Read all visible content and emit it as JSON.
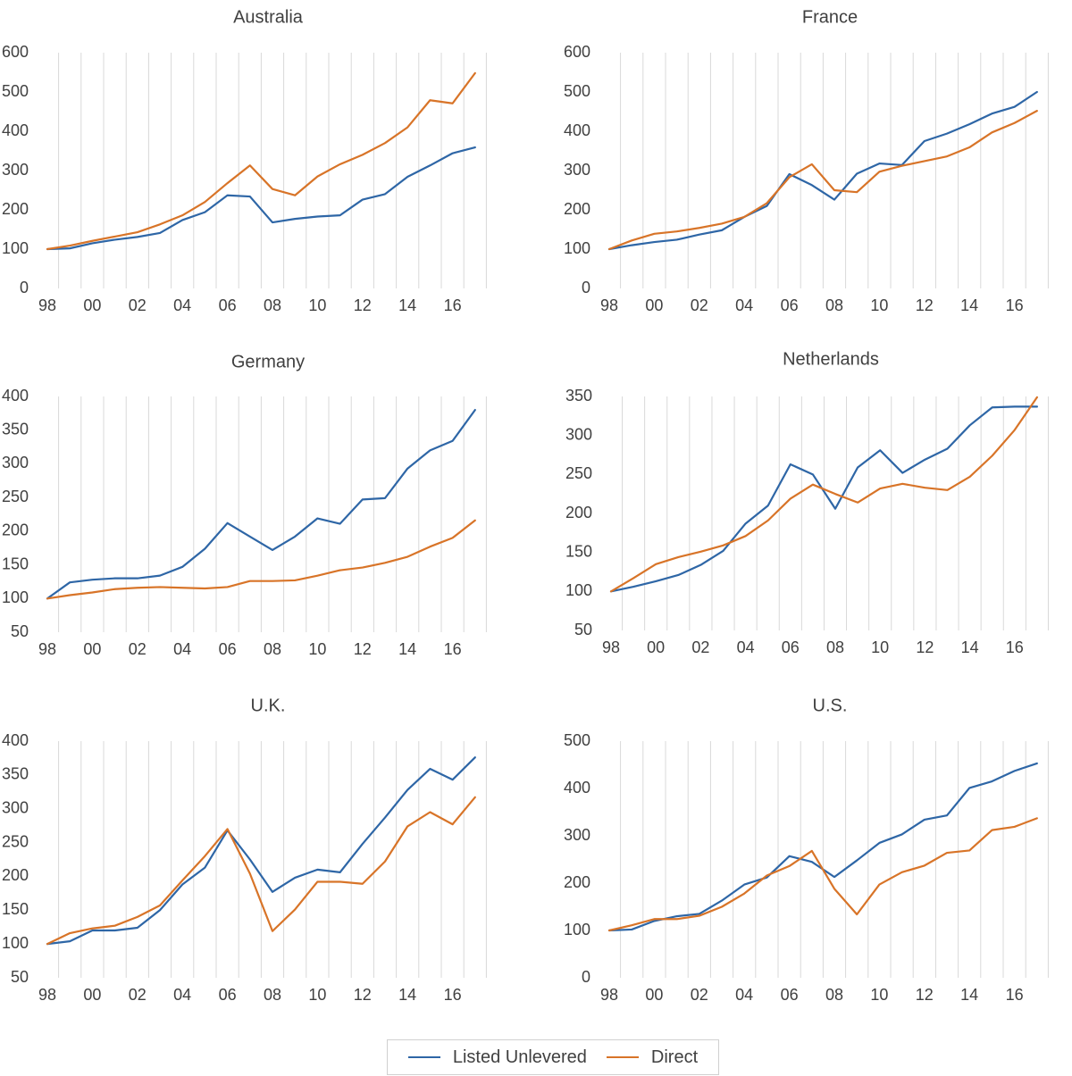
{
  "colors": {
    "listed": "#2e66a6",
    "direct": "#d87428",
    "grid": "#d9d9d9",
    "text": "#404040"
  },
  "legend": {
    "items": [
      {
        "label": "Listed Unlevered",
        "color": "#2e66a6"
      },
      {
        "label": "Direct",
        "color": "#d87428"
      }
    ],
    "placement": "bottom-center"
  },
  "chart_data": [
    {
      "type": "line",
      "title": "Australia",
      "x": [
        1998,
        1999,
        2000,
        2001,
        2002,
        2003,
        2004,
        2005,
        2006,
        2007,
        2008,
        2009,
        2010,
        2011,
        2012,
        2013,
        2014,
        2015,
        2016,
        2017
      ],
      "xticks": [
        1998,
        2000,
        2002,
        2004,
        2006,
        2008,
        2010,
        2012,
        2014,
        2016
      ],
      "xticklabels": [
        "98",
        "00",
        "02",
        "04",
        "06",
        "08",
        "10",
        "12",
        "14",
        "16"
      ],
      "ylim": [
        0,
        600
      ],
      "yticks": [
        0,
        100,
        200,
        300,
        400,
        500,
        600
      ],
      "grid": "vertical",
      "series": [
        {
          "name": "Listed Unlevered",
          "values": [
            100,
            102,
            115,
            124,
            131,
            141,
            174,
            194,
            237,
            234,
            168,
            177,
            183,
            186,
            226,
            240,
            284,
            313,
            344,
            359
          ]
        },
        {
          "name": "Direct",
          "values": [
            100,
            109,
            121,
            132,
            143,
            163,
            186,
            220,
            268,
            313,
            253,
            237,
            285,
            316,
            340,
            370,
            410,
            479,
            471,
            548
          ]
        }
      ]
    },
    {
      "type": "line",
      "title": "France",
      "x": [
        1998,
        1999,
        2000,
        2001,
        2002,
        2003,
        2004,
        2005,
        2006,
        2007,
        2008,
        2009,
        2010,
        2011,
        2012,
        2013,
        2014,
        2015,
        2016,
        2017
      ],
      "xticks": [
        1998,
        2000,
        2002,
        2004,
        2006,
        2008,
        2010,
        2012,
        2014,
        2016
      ],
      "xticklabels": [
        "98",
        "00",
        "02",
        "04",
        "06",
        "08",
        "10",
        "12",
        "14",
        "16"
      ],
      "ylim": [
        0,
        600
      ],
      "yticks": [
        0,
        100,
        200,
        300,
        400,
        500,
        600
      ],
      "grid": "vertical",
      "series": [
        {
          "name": "Listed Unlevered",
          "values": [
            100,
            110,
            118,
            124,
            137,
            148,
            182,
            210,
            291,
            263,
            226,
            292,
            318,
            314,
            375,
            394,
            418,
            445,
            462,
            500
          ]
        },
        {
          "name": "Direct",
          "values": [
            100,
            122,
            139,
            145,
            154,
            165,
            182,
            217,
            283,
            316,
            250,
            245,
            297,
            312,
            324,
            336,
            359,
            397,
            421,
            452
          ]
        }
      ]
    },
    {
      "type": "line",
      "title": "Germany",
      "x": [
        1998,
        1999,
        2000,
        2001,
        2002,
        2003,
        2004,
        2005,
        2006,
        2007,
        2008,
        2009,
        2010,
        2011,
        2012,
        2013,
        2014,
        2015,
        2016,
        2017
      ],
      "xticks": [
        1998,
        2000,
        2002,
        2004,
        2006,
        2008,
        2010,
        2012,
        2014,
        2016
      ],
      "xticklabels": [
        "98",
        "00",
        "02",
        "04",
        "06",
        "08",
        "10",
        "12",
        "14",
        "16"
      ],
      "ylim": [
        50,
        400
      ],
      "yticks": [
        50,
        100,
        150,
        200,
        250,
        300,
        350,
        400
      ],
      "grid": "vertical",
      "series": [
        {
          "name": "Listed Unlevered",
          "values": [
            100,
            124,
            128,
            130,
            130,
            134,
            147,
            174,
            212,
            192,
            172,
            192,
            219,
            211,
            247,
            249,
            293,
            320,
            334,
            380
          ]
        },
        {
          "name": "Direct",
          "values": [
            100,
            105,
            109,
            114,
            116,
            117,
            116,
            115,
            117,
            126,
            126,
            127,
            134,
            142,
            146,
            153,
            162,
            177,
            190,
            216
          ]
        }
      ]
    },
    {
      "type": "line",
      "title": "Netherlands",
      "x": [
        1998,
        1999,
        2000,
        2001,
        2002,
        2003,
        2004,
        2005,
        2006,
        2007,
        2008,
        2009,
        2010,
        2011,
        2012,
        2013,
        2014,
        2015,
        2016,
        2017
      ],
      "xticks": [
        1998,
        2000,
        2002,
        2004,
        2006,
        2008,
        2010,
        2012,
        2014,
        2016
      ],
      "xticklabels": [
        "98",
        "00",
        "02",
        "04",
        "06",
        "08",
        "10",
        "12",
        "14",
        "16"
      ],
      "ylim": [
        50,
        350
      ],
      "yticks": [
        50,
        100,
        150,
        200,
        250,
        300,
        350
      ],
      "grid": "vertical",
      "series": [
        {
          "name": "Listed Unlevered",
          "values": [
            100,
            106,
            113,
            121,
            134,
            152,
            187,
            210,
            263,
            250,
            206,
            259,
            281,
            252,
            269,
            283,
            313,
            336,
            337,
            337
          ]
        },
        {
          "name": "Direct",
          "values": [
            100,
            117,
            135,
            144,
            151,
            159,
            171,
            191,
            219,
            237,
            225,
            214,
            232,
            238,
            233,
            230,
            247,
            274,
            307,
            349
          ]
        }
      ]
    },
    {
      "type": "line",
      "title": "U.K.",
      "x": [
        1998,
        1999,
        2000,
        2001,
        2002,
        2003,
        2004,
        2005,
        2006,
        2007,
        2008,
        2009,
        2010,
        2011,
        2012,
        2013,
        2014,
        2015,
        2016,
        2017
      ],
      "xticks": [
        1998,
        2000,
        2002,
        2004,
        2006,
        2008,
        2010,
        2012,
        2014,
        2016
      ],
      "xticklabels": [
        "98",
        "00",
        "02",
        "04",
        "06",
        "08",
        "10",
        "12",
        "14",
        "16"
      ],
      "ylim": [
        50,
        400
      ],
      "yticks": [
        50,
        100,
        150,
        200,
        250,
        300,
        350,
        400
      ],
      "grid": "vertical",
      "series": [
        {
          "name": "Listed Unlevered",
          "values": [
            100,
            104,
            120,
            120,
            124,
            150,
            188,
            213,
            268,
            225,
            177,
            198,
            210,
            206,
            248,
            287,
            328,
            359,
            343,
            376
          ]
        },
        {
          "name": "Direct",
          "values": [
            100,
            116,
            123,
            127,
            140,
            157,
            194,
            230,
            270,
            204,
            119,
            151,
            192,
            192,
            189,
            222,
            274,
            295,
            277,
            317
          ]
        }
      ]
    },
    {
      "type": "line",
      "title": "U.S.",
      "x": [
        1998,
        1999,
        2000,
        2001,
        2002,
        2003,
        2004,
        2005,
        2006,
        2007,
        2008,
        2009,
        2010,
        2011,
        2012,
        2013,
        2014,
        2015,
        2016,
        2017
      ],
      "xticks": [
        1998,
        2000,
        2002,
        2004,
        2006,
        2008,
        2010,
        2012,
        2014,
        2016
      ],
      "xticklabels": [
        "98",
        "00",
        "02",
        "04",
        "06",
        "08",
        "10",
        "12",
        "14",
        "16"
      ],
      "ylim": [
        0,
        500
      ],
      "yticks": [
        0,
        100,
        200,
        300,
        400,
        500
      ],
      "grid": "vertical",
      "series": [
        {
          "name": "Listed Unlevered",
          "values": [
            100,
            102,
            120,
            130,
            135,
            163,
            197,
            212,
            257,
            245,
            213,
            248,
            285,
            303,
            334,
            343,
            401,
            415,
            437,
            453
          ]
        },
        {
          "name": "Direct",
          "values": [
            100,
            111,
            124,
            124,
            131,
            150,
            178,
            216,
            236,
            268,
            188,
            134,
            197,
            223,
            237,
            264,
            269,
            312,
            319,
            337
          ]
        }
      ]
    }
  ]
}
